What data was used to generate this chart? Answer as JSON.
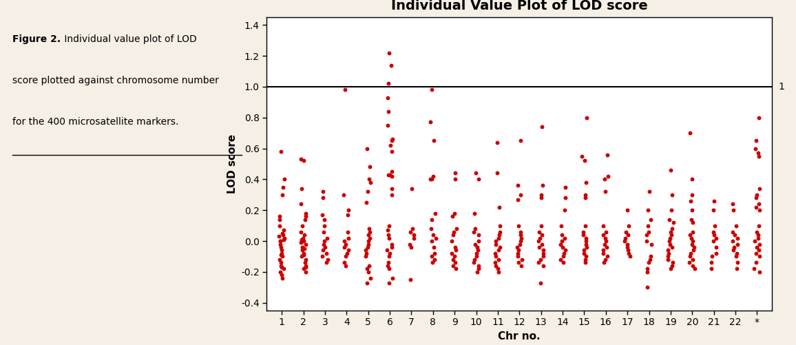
{
  "title": "Individual Value Plot of LOD score",
  "xlabel": "Chr no.",
  "ylabel": "LOD score",
  "ylim": [
    -0.45,
    1.45
  ],
  "yticks": [
    -0.4,
    -0.2,
    0.0,
    0.2,
    0.4,
    0.6,
    0.8,
    1.0,
    1.2,
    1.4
  ],
  "xlim": [
    0.3,
    23.7
  ],
  "xtick_labels": [
    "1",
    "2",
    "3",
    "4",
    "5",
    "6",
    "7",
    "8",
    "9",
    "10",
    "11",
    "12",
    "13",
    "14",
    "15",
    "16",
    "17",
    "18",
    "19",
    "20",
    "21",
    "22",
    "*"
  ],
  "reference_line_y": 1.0,
  "reference_line_label": "1",
  "dot_color": "#CC0000",
  "dot_size": 18,
  "background_color": "#F5EFE6",
  "plot_bg_color": "#FFFFFF",
  "title_fontsize": 14,
  "axis_label_fontsize": 11,
  "tick_fontsize": 10,
  "chr_data": {
    "1": [
      0.58,
      0.4,
      0.35,
      0.3,
      0.16,
      0.14,
      0.1,
      0.07,
      0.05,
      0.04,
      0.03,
      0.02,
      0.01,
      0.0,
      0.0,
      -0.02,
      -0.04,
      -0.06,
      -0.08,
      -0.09,
      -0.1,
      -0.12,
      -0.14,
      -0.16,
      -0.17,
      -0.18,
      -0.2,
      -0.22,
      -0.24
    ],
    "2": [
      0.53,
      0.52,
      0.34,
      0.24,
      0.18,
      0.16,
      0.14,
      0.1,
      0.06,
      0.04,
      0.02,
      0.01,
      0.0,
      -0.01,
      -0.02,
      -0.04,
      -0.05,
      -0.06,
      -0.08,
      -0.09,
      -0.1,
      -0.12,
      -0.14,
      -0.16,
      -0.17,
      -0.18,
      -0.2
    ],
    "3": [
      0.32,
      0.28,
      0.17,
      0.14,
      0.1,
      0.06,
      0.02,
      0.0,
      -0.02,
      -0.04,
      -0.06,
      -0.08,
      -0.1,
      -0.12,
      -0.14
    ],
    "4": [
      0.98,
      0.3,
      0.2,
      0.17,
      0.06,
      0.02,
      0.0,
      -0.02,
      -0.04,
      -0.06,
      -0.08,
      -0.1,
      -0.14,
      -0.16
    ],
    "5": [
      0.6,
      0.48,
      0.4,
      0.38,
      0.32,
      0.25,
      0.08,
      0.06,
      0.04,
      0.02,
      0.0,
      -0.02,
      -0.04,
      -0.06,
      -0.08,
      -0.1,
      -0.16,
      -0.18,
      -0.2,
      -0.24,
      -0.27
    ],
    "6": [
      1.22,
      1.14,
      1.02,
      0.93,
      0.84,
      0.75,
      0.66,
      0.65,
      0.62,
      0.58,
      0.45,
      0.43,
      0.42,
      0.43,
      0.34,
      0.3,
      0.1,
      0.07,
      0.04,
      0.02,
      -0.02,
      -0.04,
      -0.06,
      -0.08,
      -0.1,
      -0.14,
      -0.16,
      -0.18,
      -0.24,
      -0.27
    ],
    "7": [
      0.34,
      0.08,
      0.06,
      0.04,
      0.02,
      -0.02,
      -0.04,
      -0.25
    ],
    "8": [
      0.98,
      0.77,
      0.65,
      0.42,
      0.4,
      0.4,
      0.18,
      0.14,
      0.08,
      0.04,
      0.02,
      0.0,
      -0.04,
      -0.08,
      -0.1,
      -0.12,
      -0.14
    ],
    "9": [
      0.44,
      0.4,
      0.18,
      0.16,
      0.08,
      0.06,
      0.04,
      0.0,
      -0.04,
      -0.06,
      -0.08,
      -0.1,
      -0.12,
      -0.14,
      -0.16,
      -0.18
    ],
    "10": [
      0.44,
      0.4,
      0.18,
      0.08,
      0.06,
      0.04,
      0.0,
      -0.02,
      -0.04,
      -0.06,
      -0.08,
      -0.1,
      -0.12,
      -0.14,
      -0.16,
      -0.18,
      -0.2
    ],
    "11": [
      0.64,
      0.44,
      0.22,
      0.1,
      0.06,
      0.04,
      0.02,
      0.0,
      -0.02,
      -0.04,
      -0.06,
      -0.08,
      -0.1,
      -0.12,
      -0.14,
      -0.16,
      -0.18,
      -0.2
    ],
    "12": [
      0.65,
      0.36,
      0.3,
      0.27,
      0.1,
      0.06,
      0.04,
      0.02,
      0.0,
      -0.02,
      -0.04,
      -0.06,
      -0.08,
      -0.1,
      -0.12,
      -0.14,
      -0.16
    ],
    "13": [
      0.74,
      0.36,
      0.3,
      0.28,
      0.1,
      0.06,
      0.04,
      0.02,
      0.0,
      -0.02,
      -0.04,
      -0.06,
      -0.08,
      -0.1,
      -0.12,
      -0.14,
      -0.16,
      -0.27
    ],
    "14": [
      0.35,
      0.28,
      0.2,
      0.1,
      0.04,
      0.02,
      0.0,
      -0.02,
      -0.04,
      -0.06,
      -0.08,
      -0.1,
      -0.12,
      -0.14
    ],
    "15": [
      0.8,
      0.55,
      0.52,
      0.38,
      0.3,
      0.28,
      0.1,
      0.06,
      0.04,
      0.02,
      0.0,
      -0.02,
      -0.04,
      -0.06,
      -0.08,
      -0.1,
      -0.12,
      -0.14
    ],
    "16": [
      0.56,
      0.42,
      0.4,
      0.32,
      0.1,
      0.06,
      0.04,
      0.02,
      0.0,
      -0.02,
      -0.04,
      -0.06,
      -0.08,
      -0.1,
      -0.12,
      -0.14
    ],
    "17": [
      0.2,
      0.1,
      0.06,
      0.04,
      0.02,
      0.0,
      -0.02,
      -0.04,
      -0.06,
      -0.08,
      -0.1
    ],
    "18": [
      0.32,
      0.2,
      0.14,
      0.1,
      0.06,
      0.04,
      0.0,
      -0.02,
      -0.1,
      -0.12,
      -0.14,
      -0.18,
      -0.2,
      -0.3
    ],
    "19": [
      0.46,
      0.3,
      0.2,
      0.14,
      0.12,
      0.08,
      0.06,
      0.04,
      0.02,
      0.0,
      -0.02,
      -0.04,
      -0.06,
      -0.08,
      -0.1,
      -0.12,
      -0.14,
      -0.16,
      -0.18
    ],
    "20": [
      0.7,
      0.4,
      0.3,
      0.26,
      0.2,
      0.14,
      0.12,
      0.06,
      0.04,
      0.02,
      0.0,
      -0.02,
      -0.04,
      -0.06,
      -0.08,
      -0.1,
      -0.12,
      -0.14,
      -0.16,
      -0.18
    ],
    "21": [
      0.26,
      0.2,
      0.1,
      0.06,
      0.04,
      0.02,
      0.0,
      -0.04,
      -0.08,
      -0.1,
      -0.14,
      -0.18
    ],
    "22": [
      0.24,
      0.2,
      0.1,
      0.06,
      0.04,
      0.02,
      0.0,
      -0.02,
      -0.04,
      -0.06,
      -0.08,
      -0.1,
      -0.14,
      -0.18
    ],
    "*": [
      0.8,
      0.65,
      0.6,
      0.57,
      0.55,
      0.34,
      0.3,
      0.28,
      0.24,
      0.22,
      0.2,
      0.1,
      0.06,
      0.04,
      0.02,
      0.0,
      -0.02,
      -0.04,
      -0.06,
      -0.08,
      -0.1,
      -0.14,
      -0.18,
      -0.2
    ]
  }
}
